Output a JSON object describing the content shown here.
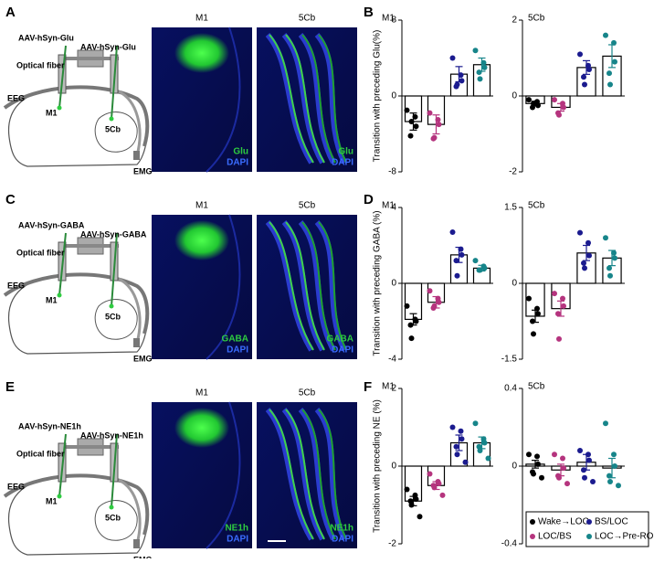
{
  "rows": [
    {
      "letter": "A",
      "chart_letter": "B",
      "virus": [
        "AAV-hSyn-Glu",
        "AAV-hSyn-Glu"
      ],
      "fiber": "Optical fiber",
      "eeg": "EEG",
      "site1": "M1",
      "site2": "5Cb",
      "emg": "EMG",
      "images": [
        {
          "title": "M1",
          "stain": "Glu",
          "dapi": "DAPI"
        },
        {
          "title": "5Cb",
          "stain": "Glu",
          "dapi": "DAPI"
        }
      ]
    },
    {
      "letter": "C",
      "chart_letter": "D",
      "virus": [
        "AAV-hSyn-GABA",
        "AAV-hSyn-GABA"
      ],
      "fiber": "Optical fiber",
      "eeg": "EEG",
      "site1": "M1",
      "site2": "5Cb",
      "emg": "EMG",
      "images": [
        {
          "title": "M1",
          "stain": "GABA",
          "dapi": "DAPI"
        },
        {
          "title": "5Cb",
          "stain": "GABA",
          "dapi": "DAPI"
        }
      ]
    },
    {
      "letter": "E",
      "chart_letter": "F",
      "virus": [
        "AAV-hSyn-NE1h",
        "AAV-hSyn-NE1h"
      ],
      "fiber": "Optical fiber",
      "eeg": "EEG",
      "site1": "M1",
      "site2": "5Cb",
      "emg": "EMG",
      "images": [
        {
          "title": "M1",
          "stain": "NE1h",
          "dapi": "DAPI"
        },
        {
          "title": "5Cb",
          "stain": "NE1h",
          "dapi": "DAPI"
        }
      ]
    }
  ],
  "legend": {
    "names": [
      "Wake→LOC",
      "BS/LOC",
      "LOC/BS",
      "LOC→Pre-ROC"
    ],
    "colors": [
      "#000000",
      "#1b1b8f",
      "#b5347e",
      "#17858a"
    ]
  },
  "chart_data": [
    {
      "type": "bar",
      "title": "M1",
      "ylabel": "Transition with preceding Glu(%)",
      "colors": [
        "#000000",
        "#b5347e",
        "#1b1b8f",
        "#17858a"
      ],
      "values": [
        -2.7,
        -3.0,
        2.3,
        3.3
      ],
      "errors": [
        0.9,
        1.0,
        0.8,
        0.7
      ],
      "points": [
        [
          -1.5,
          -2.2,
          -3.2,
          -4.2,
          -2.7
        ],
        [
          -1.8,
          -2.5,
          -3.0,
          -4.5,
          -4.4
        ],
        [
          4.0,
          2.2,
          1.6,
          1.0,
          1.2
        ],
        [
          4.8,
          3.5,
          3.0,
          2.5,
          1.8
        ]
      ],
      "ylim": [
        -8,
        8
      ],
      "yticks": [
        -8,
        0,
        8
      ]
    },
    {
      "type": "bar",
      "title": "5Cb",
      "colors": [
        "#000000",
        "#b5347e",
        "#1b1b8f",
        "#17858a"
      ],
      "values": [
        -0.2,
        -0.3,
        0.75,
        1.05
      ],
      "errors": [
        0.06,
        0.1,
        0.18,
        0.3
      ],
      "points": [
        [
          -0.1,
          -0.15,
          -0.25,
          -0.3,
          -0.2
        ],
        [
          -0.1,
          -0.2,
          -0.3,
          -0.45,
          -0.5
        ],
        [
          1.1,
          0.8,
          0.7,
          0.5,
          0.3
        ],
        [
          1.6,
          1.4,
          0.9,
          0.6,
          0.3
        ]
      ],
      "ylim": [
        -2,
        2
      ],
      "yticks": [
        -2,
        0,
        2
      ]
    },
    {
      "type": "bar",
      "title": "M1",
      "ylabel": "Transition with preceding GABA (%)",
      "colors": [
        "#000000",
        "#b5347e",
        "#1b1b8f",
        "#17858a"
      ],
      "values": [
        -1.9,
        -1.0,
        1.5,
        0.8
      ],
      "errors": [
        0.3,
        0.3,
        0.4,
        0.15
      ],
      "points": [
        [
          -1.2,
          -1.9,
          -2.0,
          -2.2,
          -2.9
        ],
        [
          -0.4,
          -0.8,
          -1.0,
          -1.3,
          -1.2
        ],
        [
          2.7,
          1.8,
          1.5,
          1.2,
          0.4
        ],
        [
          1.2,
          0.9,
          0.8,
          0.7,
          0.7
        ]
      ],
      "ylim": [
        -4,
        4
      ],
      "yticks": [
        -4,
        0,
        4
      ]
    },
    {
      "type": "bar",
      "title": "5Cb",
      "colors": [
        "#000000",
        "#b5347e",
        "#1b1b8f",
        "#17858a"
      ],
      "values": [
        -0.65,
        -0.5,
        0.6,
        0.5
      ],
      "errors": [
        0.12,
        0.15,
        0.15,
        0.15
      ],
      "points": [
        [
          -0.3,
          -0.5,
          -0.6,
          -0.75,
          -1.0
        ],
        [
          -0.2,
          -0.3,
          -0.45,
          -0.6,
          -1.1
        ],
        [
          1.0,
          0.8,
          0.55,
          0.4,
          0.3
        ],
        [
          0.9,
          0.6,
          0.5,
          0.3,
          0.15
        ]
      ],
      "ylim": [
        -1.5,
        1.5
      ],
      "yticks": [
        -1.5,
        0,
        1.5
      ]
    },
    {
      "type": "bar",
      "title": "M1",
      "ylabel": "Transition with preceding NE (%)",
      "colors": [
        "#000000",
        "#b5347e",
        "#1b1b8f",
        "#17858a"
      ],
      "values": [
        -0.9,
        -0.5,
        0.6,
        0.6
      ],
      "errors": [
        0.12,
        0.1,
        0.2,
        0.15
      ],
      "points": [
        [
          -0.6,
          -0.75,
          -0.85,
          -0.9,
          -1.0,
          -1.3
        ],
        [
          -0.2,
          -0.4,
          -0.45,
          -0.5,
          -0.55,
          -0.75
        ],
        [
          1.0,
          0.9,
          0.7,
          0.5,
          0.3,
          0.1
        ],
        [
          1.1,
          0.7,
          0.6,
          0.5,
          0.4,
          0.2
        ]
      ],
      "ylim": [
        -2,
        2
      ],
      "yticks": [
        -2,
        0,
        2
      ]
    },
    {
      "type": "bar",
      "title": "5Cb",
      "colors": [
        "#000000",
        "#b5347e",
        "#1b1b8f",
        "#17858a"
      ],
      "values": [
        0.01,
        -0.02,
        0.02,
        -0.01
      ],
      "errors": [
        0.02,
        0.03,
        0.04,
        0.05
      ],
      "points": [
        [
          0.06,
          0.05,
          0.01,
          -0.03,
          -0.04,
          -0.06
        ],
        [
          0.06,
          0.04,
          -0.01,
          -0.05,
          -0.06,
          -0.09
        ],
        [
          0.08,
          0.06,
          0.03,
          -0.02,
          -0.06,
          -0.08
        ],
        [
          0.22,
          0.06,
          0.0,
          -0.05,
          -0.08,
          -0.1
        ]
      ],
      "ylim": [
        -0.4,
        0.4
      ],
      "yticks": [
        -0.4,
        0,
        0.4
      ]
    }
  ]
}
